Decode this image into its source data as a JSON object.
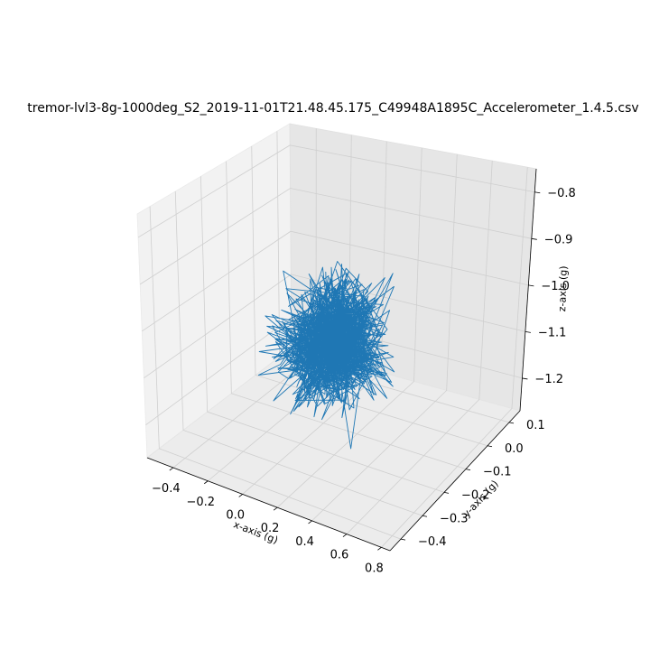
{
  "chart_data": {
    "type": "line3d",
    "title": "tremor-lvl3-8g-1000deg_S2_2019-11-01T21.48.45.175_C49948A1895C_Accelerometer_1.4.5.csv",
    "xlabel": "x-axis (g)",
    "ylabel": "y-axis (g)",
    "zlabel": "z-axis (g)",
    "x_ticks": [
      "−0.4",
      "−0.2",
      "0.0",
      "0.2",
      "0.4",
      "0.6",
      "0.8"
    ],
    "y_ticks": [
      "−0.4",
      "−0.3",
      "−0.2",
      "−0.1",
      "0.0",
      "0.1"
    ],
    "z_ticks": [
      "−1.2",
      "−1.1",
      "−1.0",
      "−0.9",
      "−0.8"
    ],
    "xlim": [
      -0.55,
      0.85
    ],
    "ylim": [
      -0.45,
      0.15
    ],
    "zlim": [
      -1.27,
      -0.75
    ],
    "grid": true,
    "series": [
      {
        "color": "#1f77b4",
        "description_samples": 900,
        "center": {
          "x": 0.12,
          "y": -0.15,
          "z": -1.06
        },
        "spread": {
          "x": 0.12,
          "y": 0.07,
          "z": 0.055
        },
        "extent": {
          "x": [
            -0.48,
            0.8
          ],
          "y": [
            -0.42,
            0.12
          ],
          "z": [
            -1.22,
            -0.78
          ]
        }
      }
    ]
  }
}
